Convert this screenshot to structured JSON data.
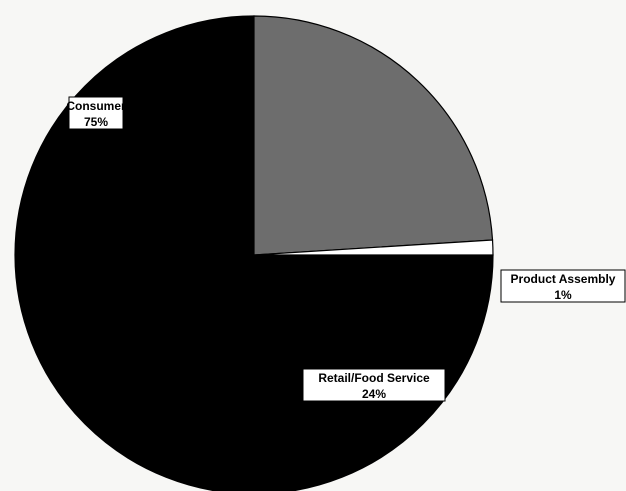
{
  "chart_data": {
    "type": "pie",
    "slices": [
      {
        "label": "Consumer",
        "percent_label": "75%",
        "value": 75,
        "color": "#000000"
      },
      {
        "label": "Retail/Food Service",
        "percent_label": "24%",
        "value": 24,
        "color": "#6d6d6d"
      },
      {
        "label": "Product Assembly",
        "percent_label": "1%",
        "value": 1,
        "color": "#ffffff"
      }
    ],
    "start_angle_deg": 0,
    "direction": "clockwise",
    "legend": "none",
    "slice_outline_color": "#000000",
    "background_color": "#f7f7f5"
  }
}
